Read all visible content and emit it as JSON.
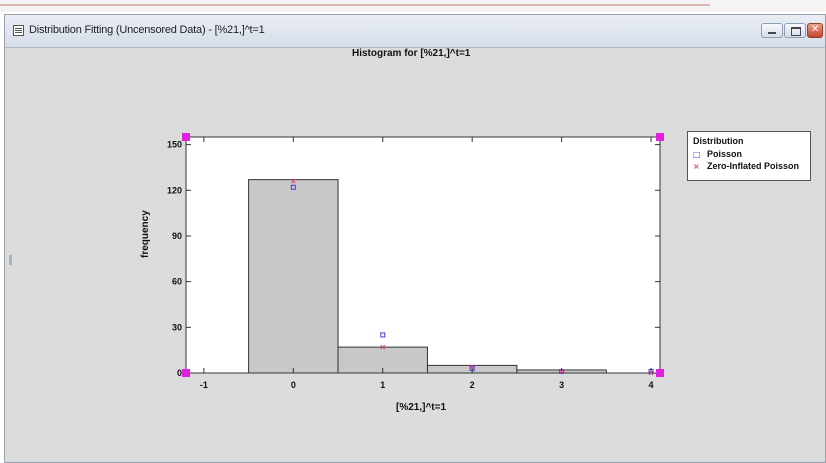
{
  "window": {
    "title": "Distribution Fitting (Uncensored Data) - [%21,]^t=1",
    "buttons": {
      "minimize": "minimize",
      "maximize": "maximize",
      "close": "close"
    }
  },
  "legend": {
    "title": "Distribution",
    "items": [
      {
        "label": "Poisson",
        "symbol": "□",
        "color": "#3d3dd9"
      },
      {
        "label": "Zero-Inflated Poisson",
        "symbol": "×",
        "color": "#e0457a"
      }
    ]
  },
  "chart_data": {
    "type": "bar",
    "title": "Histogram for [%21,]^t=1",
    "xlabel": "[%21,]^t=1",
    "ylabel": "frequency",
    "xlim": [
      -1.2,
      4.1
    ],
    "ylim": [
      0,
      155
    ],
    "xticks": [
      -1,
      0,
      1,
      2,
      3,
      4
    ],
    "yticks": [
      0,
      30,
      60,
      90,
      120,
      150
    ],
    "bins": [
      {
        "x0": -0.5,
        "x1": 0.5,
        "value": 127
      },
      {
        "x0": 0.5,
        "x1": 1.5,
        "value": 17
      },
      {
        "x0": 1.5,
        "x1": 2.5,
        "value": 5
      },
      {
        "x0": 2.5,
        "x1": 3.5,
        "value": 2
      }
    ],
    "series": [
      {
        "name": "Poisson",
        "marker": "square",
        "color": "#3d3dd9",
        "x": [
          0,
          1,
          2,
          3,
          4
        ],
        "y": [
          122,
          25,
          3,
          1,
          1
        ]
      },
      {
        "name": "Zero-Inflated Poisson",
        "marker": "x",
        "color": "#e0457a",
        "x": [
          0,
          1,
          2,
          3,
          4
        ],
        "y": [
          126,
          17,
          4,
          1,
          0
        ]
      }
    ],
    "bar_color": "#c8c8c8",
    "grid": false,
    "legend_position": "right"
  },
  "colors": {
    "window_bg": "#d9d9d9",
    "plot_bg": "#ffffff",
    "handle": "#e020e0"
  }
}
